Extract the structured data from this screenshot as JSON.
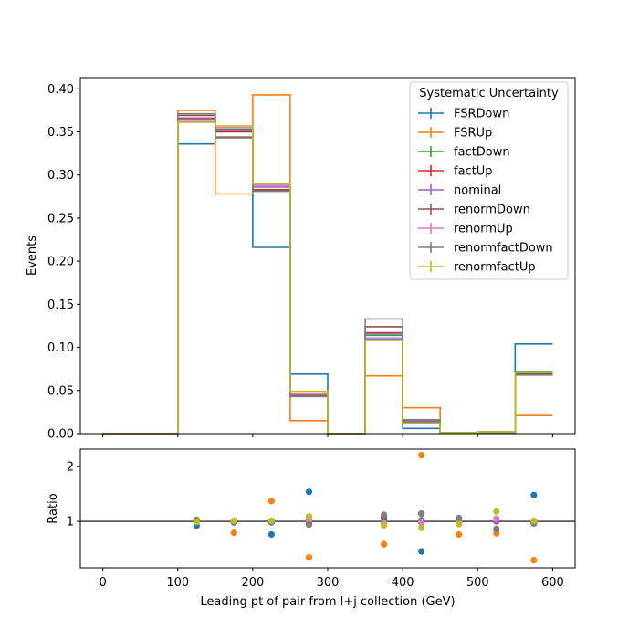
{
  "chart_data": [
    {
      "type": "step-histogram",
      "xlabel": "",
      "ylabel": "Events",
      "xlim": [
        -30,
        630
      ],
      "ylim": [
        0,
        0.413
      ],
      "yticks": [
        0.0,
        0.05,
        0.1,
        0.15,
        0.2,
        0.25,
        0.3,
        0.35,
        0.4
      ],
      "ytick_labels": [
        "0.00",
        "0.05",
        "0.10",
        "0.15",
        "0.20",
        "0.25",
        "0.30",
        "0.35",
        "0.40"
      ],
      "bin_edges": [
        0,
        50,
        100,
        150,
        200,
        250,
        300,
        350,
        400,
        450,
        500,
        550,
        600
      ],
      "legend": {
        "title": "Systematic Uncertainty",
        "placement": "top-right"
      },
      "series": [
        {
          "name": "FSRDown",
          "color": "#1f77b4",
          "values": [
            0,
            0,
            0.336,
            0.351,
            0.216,
            0.069,
            0,
            0.109,
            0.006,
            0.001,
            0.002,
            0.104
          ]
        },
        {
          "name": "FSRUp",
          "color": "#ff7f0e",
          "values": [
            0,
            0,
            0.375,
            0.278,
            0.393,
            0.015,
            0,
            0.067,
            0.03,
            0.001,
            0.001,
            0.021
          ]
        },
        {
          "name": "factDown",
          "color": "#2ca02c",
          "values": [
            0,
            0,
            0.364,
            0.353,
            0.288,
            0.046,
            0,
            0.114,
            0.015,
            0.001,
            0.002,
            0.072
          ]
        },
        {
          "name": "factUp",
          "color": "#d62728",
          "values": [
            0,
            0,
            0.366,
            0.35,
            0.283,
            0.046,
            0,
            0.117,
            0.013,
            0.001,
            0.002,
            0.07
          ]
        },
        {
          "name": "nominal",
          "color": "#9467bd",
          "values": [
            0,
            0,
            0.365,
            0.352,
            0.286,
            0.045,
            0,
            0.116,
            0.014,
            0.001,
            0.002,
            0.071
          ]
        },
        {
          "name": "renormDown",
          "color": "#8c564b",
          "values": [
            0,
            0,
            0.369,
            0.344,
            0.282,
            0.044,
            0,
            0.124,
            0.016,
            0.001,
            0.001,
            0.069
          ]
        },
        {
          "name": "renormUp",
          "color": "#e377c2",
          "values": [
            0,
            0,
            0.362,
            0.355,
            0.288,
            0.046,
            0,
            0.111,
            0.012,
            0.001,
            0.002,
            0.071
          ]
        },
        {
          "name": "renormfactDown",
          "color": "#7f7f7f",
          "values": [
            0,
            0,
            0.371,
            0.343,
            0.281,
            0.043,
            0,
            0.133,
            0.016,
            0.001,
            0.001,
            0.068
          ]
        },
        {
          "name": "renormfactUp",
          "color": "#bcbd22",
          "values": [
            0,
            0,
            0.361,
            0.357,
            0.29,
            0.049,
            0,
            0.108,
            0.012,
            0.001,
            0.002,
            0.071
          ]
        }
      ]
    },
    {
      "type": "scatter",
      "xlabel": "Leading pt of pair from l+j collection (GeV)",
      "ylabel": "Ratio",
      "xlim": [
        -30,
        630
      ],
      "ylim": [
        0.15,
        2.32
      ],
      "xticks": [
        0,
        100,
        200,
        300,
        400,
        500,
        600
      ],
      "xtick_labels": [
        "0",
        "100",
        "200",
        "300",
        "400",
        "500",
        "600"
      ],
      "yticks": [
        1,
        2
      ],
      "ytick_labels": [
        "1",
        "2"
      ],
      "reference_line": 1,
      "x": [
        125,
        175,
        225,
        275,
        375,
        425,
        475,
        525,
        575
      ],
      "series": [
        {
          "name": "FSRDown",
          "color": "#1f77b4",
          "values": [
            0.92,
            1.0,
            0.76,
            1.54,
            0.95,
            0.45,
            1.0,
            1.0,
            1.48
          ]
        },
        {
          "name": "FSRUp",
          "color": "#ff7f0e",
          "values": [
            1.03,
            0.79,
            1.37,
            0.34,
            0.58,
            2.21,
            0.76,
            0.78,
            0.29
          ]
        },
        {
          "name": "factDown",
          "color": "#2ca02c",
          "values": [
            1.0,
            1.0,
            1.0,
            1.03,
            0.98,
            1.02,
            1.0,
            1.0,
            1.0
          ]
        },
        {
          "name": "factUp",
          "color": "#d62728",
          "values": [
            1.0,
            0.99,
            0.99,
            1.02,
            1.01,
            0.98,
            1.0,
            1.0,
            0.99
          ]
        },
        {
          "name": "nominal",
          "color": "#9467bd",
          "values": [
            1.0,
            1.0,
            1.0,
            1.0,
            1.0,
            1.0,
            1.0,
            1.0,
            1.0
          ]
        },
        {
          "name": "renormDown",
          "color": "#8c564b",
          "values": [
            1.01,
            0.98,
            0.99,
            0.97,
            1.07,
            1.14,
            1.04,
            0.86,
            0.97
          ]
        },
        {
          "name": "renormUp",
          "color": "#e377c2",
          "values": [
            0.99,
            1.01,
            1.01,
            1.02,
            0.96,
            0.98,
            0.98,
            1.05,
            1.0
          ]
        },
        {
          "name": "renormfactDown",
          "color": "#7f7f7f",
          "values": [
            1.02,
            0.98,
            0.98,
            0.94,
            1.12,
            1.14,
            1.06,
            0.85,
            0.96
          ]
        },
        {
          "name": "renormfactUp",
          "color": "#bcbd22",
          "values": [
            0.99,
            1.01,
            1.01,
            1.09,
            0.93,
            0.88,
            0.95,
            1.18,
            1.01
          ]
        }
      ]
    }
  ]
}
